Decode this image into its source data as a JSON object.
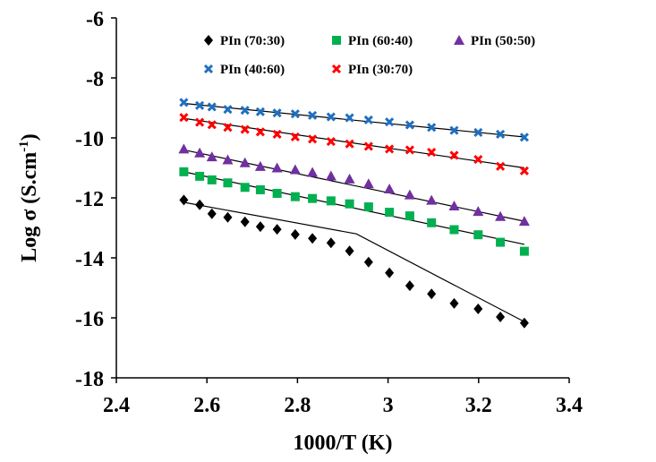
{
  "chart_data": {
    "type": "scatter",
    "xlabel": "1000/T (K)",
    "ylabel_main": "Log σ (S.cm",
    "ylabel_sup": "-1",
    "ylabel_close": ")",
    "xlim": [
      2.4,
      3.4
    ],
    "ylim": [
      -18,
      -6
    ],
    "x_ticks": [
      2.4,
      2.6,
      2.8,
      3.0,
      3.2,
      3.4
    ],
    "x_tick_labels": [
      "2.4",
      "2.6",
      "2.8",
      "3",
      "3.2",
      "3.4"
    ],
    "y_ticks": [
      -6,
      -8,
      -10,
      -12,
      -14,
      -16,
      -18
    ],
    "y_tick_labels": [
      "-6",
      "-8",
      "-10",
      "-12",
      "-14",
      "-16",
      "-18"
    ],
    "grid": false,
    "legend_position": "top-right",
    "series": [
      {
        "name": "PIn (70:30)",
        "marker": "diamond",
        "color": "#000000",
        "x": [
          2.549,
          2.584,
          2.611,
          2.646,
          2.684,
          2.718,
          2.755,
          2.795,
          2.833,
          2.874,
          2.915,
          2.957,
          3.003,
          3.048,
          3.096,
          3.146,
          3.199,
          3.248,
          3.301
        ],
        "y": [
          -12.07,
          -12.23,
          -12.53,
          -12.65,
          -12.8,
          -12.96,
          -13.05,
          -13.22,
          -13.35,
          -13.5,
          -13.77,
          -14.14,
          -14.5,
          -14.93,
          -15.2,
          -15.52,
          -15.7,
          -15.97,
          -16.17
        ],
        "fit_x": [
          2.549,
          2.93,
          3.301
        ],
        "fit_y": [
          -12.15,
          -13.2,
          -16.13
        ]
      },
      {
        "name": "PIn (60:40)",
        "marker": "square",
        "color": "#00b050",
        "x": [
          2.549,
          2.584,
          2.611,
          2.646,
          2.684,
          2.718,
          2.755,
          2.795,
          2.833,
          2.874,
          2.915,
          2.957,
          3.003,
          3.048,
          3.096,
          3.146,
          3.199,
          3.248,
          3.301
        ],
        "y": [
          -11.13,
          -11.28,
          -11.4,
          -11.5,
          -11.65,
          -11.73,
          -11.85,
          -11.96,
          -12.02,
          -12.1,
          -12.2,
          -12.3,
          -12.48,
          -12.6,
          -12.83,
          -13.06,
          -13.23,
          -13.48,
          -13.78
        ],
        "fit_x": [
          2.549,
          3.301
        ],
        "fit_y": [
          -11.13,
          -13.55
        ]
      },
      {
        "name": "PIn (50:50)",
        "marker": "triangle",
        "color": "#7030a0",
        "x": [
          2.549,
          2.584,
          2.611,
          2.646,
          2.684,
          2.718,
          2.755,
          2.795,
          2.833,
          2.874,
          2.915,
          2.957,
          3.003,
          3.048,
          3.096,
          3.146,
          3.199,
          3.248,
          3.301
        ],
        "y": [
          -10.37,
          -10.5,
          -10.63,
          -10.73,
          -10.83,
          -10.95,
          -11.0,
          -11.06,
          -11.15,
          -11.27,
          -11.37,
          -11.53,
          -11.7,
          -11.9,
          -12.08,
          -12.27,
          -12.45,
          -12.62,
          -12.78
        ],
        "fit_x": [
          2.549,
          3.301
        ],
        "fit_y": [
          -10.4,
          -12.78
        ]
      },
      {
        "name": "PIn (40:60)",
        "marker": "x",
        "color": "#1f6fc0",
        "x": [
          2.549,
          2.584,
          2.611,
          2.646,
          2.684,
          2.718,
          2.755,
          2.795,
          2.833,
          2.874,
          2.915,
          2.957,
          3.003,
          3.048,
          3.096,
          3.146,
          3.199,
          3.248,
          3.301
        ],
        "y": [
          -8.82,
          -8.92,
          -8.97,
          -9.05,
          -9.08,
          -9.13,
          -9.17,
          -9.2,
          -9.25,
          -9.3,
          -9.33,
          -9.4,
          -9.47,
          -9.57,
          -9.65,
          -9.75,
          -9.82,
          -9.88,
          -9.98
        ],
        "fit_x": [
          2.549,
          3.301
        ],
        "fit_y": [
          -8.85,
          -9.97
        ]
      },
      {
        "name": "PIn (30:70)",
        "marker": "x",
        "color": "#ff0000",
        "x": [
          2.549,
          2.584,
          2.611,
          2.646,
          2.684,
          2.718,
          2.755,
          2.795,
          2.833,
          2.874,
          2.915,
          2.957,
          3.003,
          3.048,
          3.096,
          3.146,
          3.199,
          3.248,
          3.301
        ],
        "y": [
          -9.32,
          -9.48,
          -9.56,
          -9.65,
          -9.72,
          -9.8,
          -9.88,
          -9.97,
          -10.04,
          -10.12,
          -10.2,
          -10.28,
          -10.37,
          -10.4,
          -10.48,
          -10.58,
          -10.72,
          -10.95,
          -11.1
        ],
        "fit_x": [
          2.549,
          3.301
        ],
        "fit_y": [
          -9.35,
          -11.0
        ]
      }
    ]
  }
}
